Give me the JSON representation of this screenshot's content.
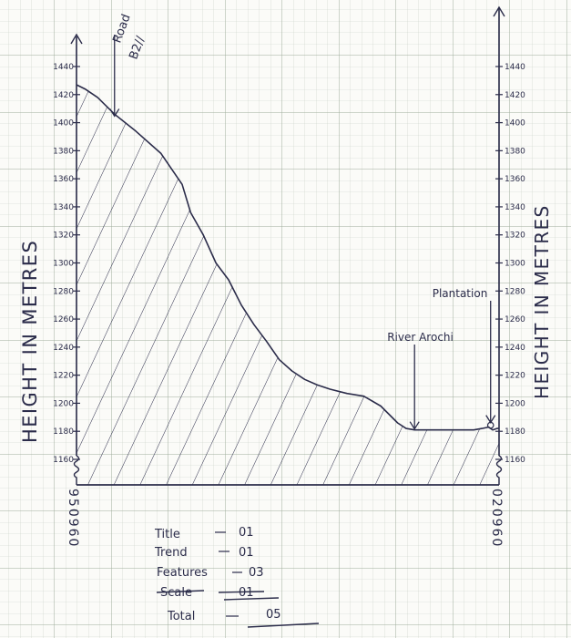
{
  "colors": {
    "paper": "#fbfbf8",
    "grid_minor": "#c9d2c6",
    "grid_major": "#9fae9b",
    "ink": "#2b2c4a"
  },
  "chart_data": {
    "type": "area",
    "title": "",
    "left_axis_label": "HEIGHT IN METRES",
    "right_axis_label": "HEIGHT IN METRES",
    "left_grid_ref": "950960",
    "right_grid_ref": "020960",
    "ylim": [
      1160,
      1440
    ],
    "y_ticks": [
      1160,
      1180,
      1200,
      1220,
      1240,
      1260,
      1280,
      1300,
      1320,
      1340,
      1360,
      1380,
      1400,
      1420,
      1440
    ],
    "left_tick_labels": [
      "1160",
      "1180",
      "1200",
      "1220",
      "1240",
      "1260",
      "1280",
      "1300",
      "1320",
      "1340",
      "1360",
      "1380",
      "1400",
      "1420",
      "1440"
    ],
    "right_tick_labels": [
      "1160",
      "1180",
      "1200",
      "1220",
      "1240",
      "1260",
      "1280",
      "1300",
      "1320",
      "1340",
      "1360",
      "1380",
      "1400",
      "1420",
      "1440"
    ],
    "x_fraction": [
      0.0,
      0.02,
      0.05,
      0.09,
      0.14,
      0.2,
      0.25,
      0.27,
      0.3,
      0.33,
      0.36,
      0.39,
      0.42,
      0.45,
      0.48,
      0.51,
      0.54,
      0.57,
      0.6,
      0.64,
      0.68,
      0.72,
      0.76,
      0.78,
      0.8,
      0.82,
      0.84,
      0.85,
      0.86,
      0.88,
      0.91,
      0.94,
      0.96,
      0.975,
      0.985,
      0.995,
      1.0
    ],
    "heights": [
      1427,
      1424,
      1418,
      1406,
      1394,
      1378,
      1356,
      1336,
      1320,
      1300,
      1288,
      1270,
      1256,
      1244,
      1231,
      1223,
      1217,
      1213,
      1210,
      1207,
      1205,
      1198,
      1186,
      1182,
      1181,
      1181,
      1181,
      1181,
      1181,
      1181,
      1181,
      1181,
      1182,
      1183,
      1181,
      1182,
      1182
    ],
    "annotations": [
      {
        "text": "Road",
        "x_fraction": 0.09,
        "height": 1404
      },
      {
        "text": "River Arochi",
        "x_fraction": 0.8,
        "height": 1181
      },
      {
        "text": "Plantation",
        "x_fraction": 0.98,
        "height": 1183
      }
    ],
    "road_symbol": "B2//",
    "shading": "diagonal-hatch"
  },
  "marks": {
    "rows": [
      {
        "item": "Title",
        "value": "01"
      },
      {
        "item": "Trend",
        "value": "01"
      },
      {
        "item": "Features",
        "value": "03"
      },
      {
        "item": "Scale",
        "value": "01",
        "struck": true
      },
      {
        "item": "Total",
        "value": "05"
      }
    ]
  }
}
